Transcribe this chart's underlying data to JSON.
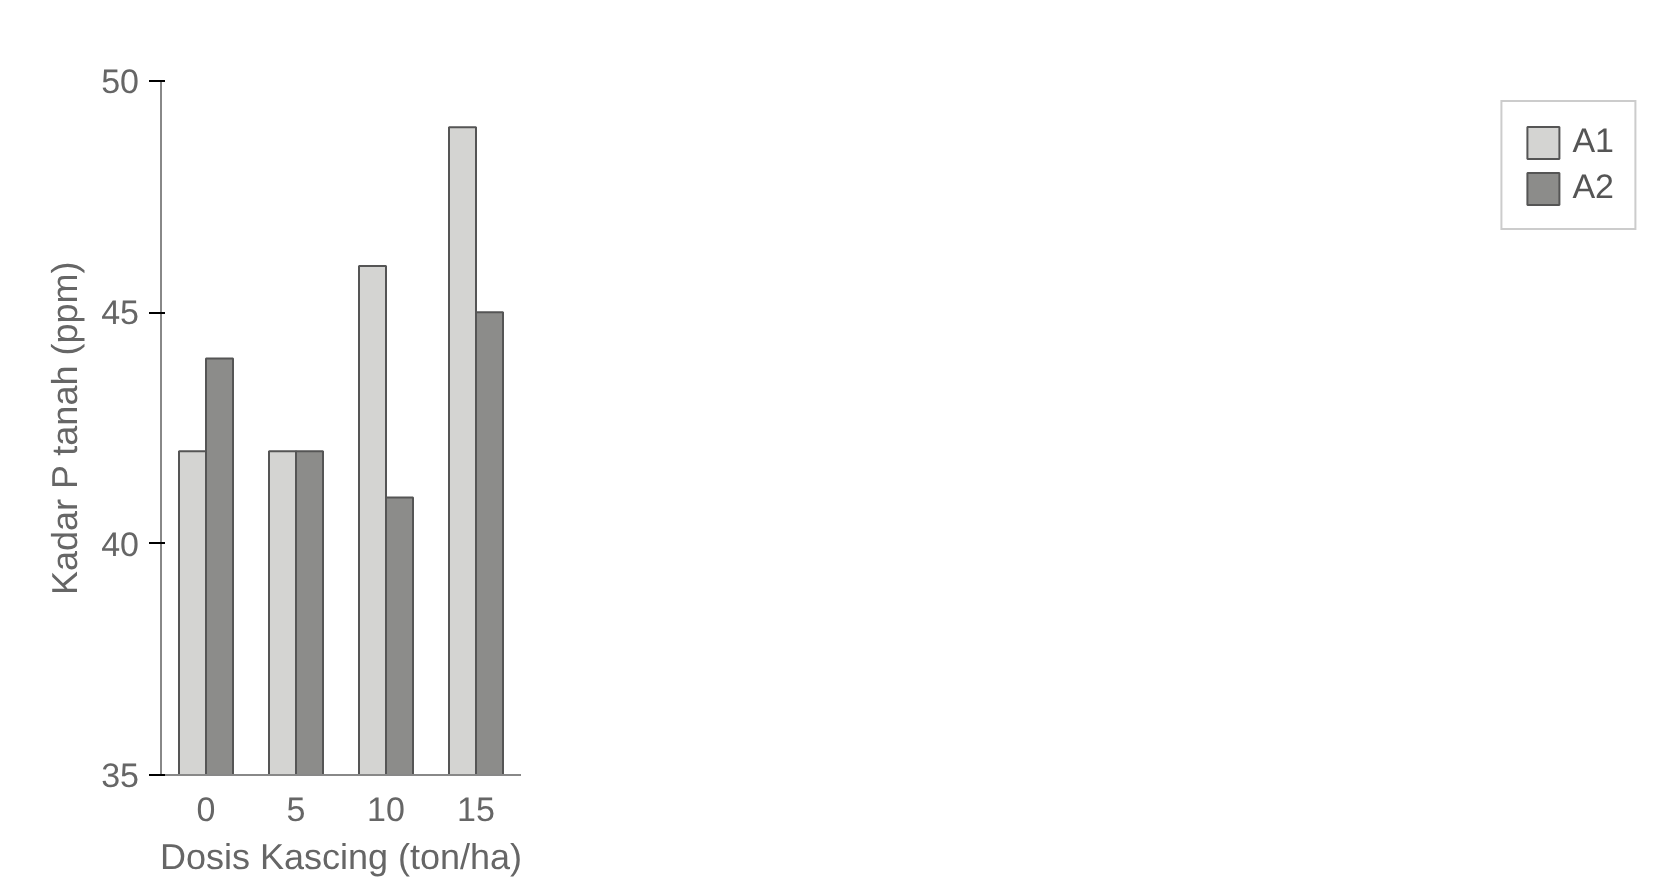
{
  "chart_data": {
    "type": "bar",
    "xlabel": "Dosis Kascing (ton/ha)",
    "ylabel": "Kadar P tanah (ppm)",
    "categories": [
      "0",
      "5",
      "10",
      "15"
    ],
    "series": [
      {
        "name": "A1",
        "color": "#d4d4d2",
        "values": [
          42,
          42,
          46,
          49
        ]
      },
      {
        "name": "A2",
        "color": "#8c8c8a",
        "values": [
          44,
          42,
          41,
          45
        ]
      }
    ],
    "ylim": [
      35,
      50
    ],
    "yticks": [
      35,
      40,
      45,
      50
    ],
    "grid": false,
    "legend": "right"
  }
}
